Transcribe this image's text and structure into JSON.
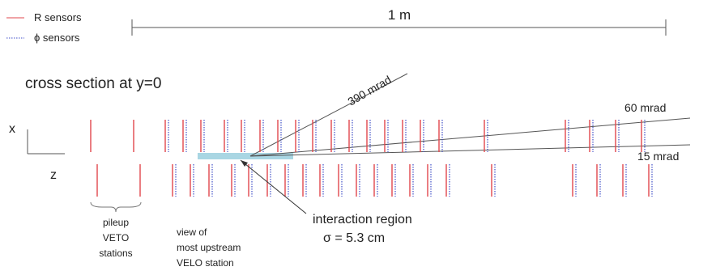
{
  "legend": {
    "items": [
      {
        "label": "R sensors",
        "color": "#e0474c",
        "style": "solid"
      },
      {
        "label": "ϕ sensors",
        "color": "#3f4fc8",
        "style": "dotted"
      }
    ]
  },
  "scale": {
    "label": "1 m"
  },
  "section_title": "cross section at y=0",
  "axes": {
    "x_label": "x",
    "z_label": "z"
  },
  "angles": {
    "wide": "390 mrad",
    "mid": "60 mrad",
    "narrow": "15 mrad"
  },
  "interaction": {
    "line1": "interaction region",
    "line2": "σ = 5.3 cm"
  },
  "pileup": {
    "line1": "pileup",
    "line2": "VETO",
    "line3": "stations"
  },
  "view": {
    "line1": "view of",
    "line2": "most upstream",
    "line3": "VELO station"
  },
  "colors": {
    "r_sensor": "#e0474c",
    "phi_sensor": "#3f4fc8",
    "region": "#a9d6e3",
    "line": "#555555"
  }
}
